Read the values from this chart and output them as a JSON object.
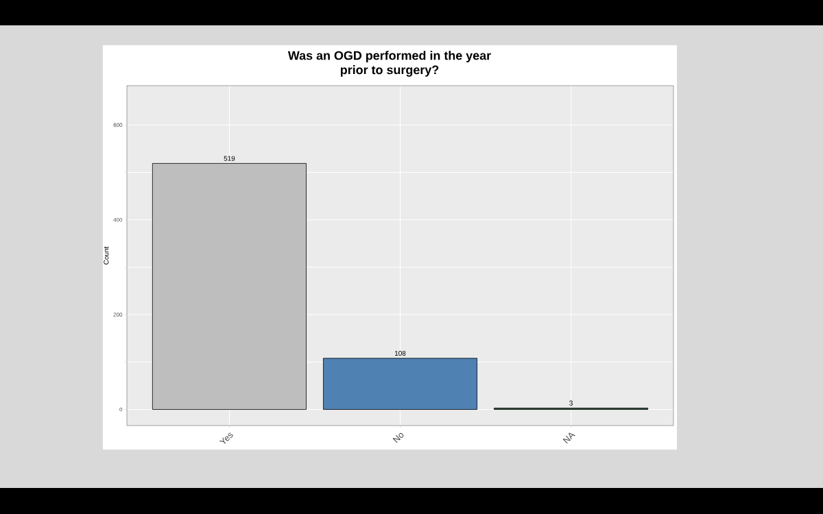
{
  "chart_data": {
    "type": "bar",
    "title": "Was an OGD performed in the year prior to surgery?",
    "ylabel": "Count",
    "categories": [
      "Yes",
      "No",
      "NA"
    ],
    "values": [
      519,
      108,
      3
    ],
    "colors": [
      "#bebebe",
      "#4f81b2",
      "#2f4f3a"
    ],
    "ylim": [
      -34,
      683
    ],
    "yticks": [
      0,
      {
        "value": 100,
        "label": null
      },
      200,
      {
        "value": 300,
        "label": null
      },
      400,
      {
        "value": 500,
        "label": null
      },
      600
    ],
    "grid": true,
    "data_labels": true
  }
}
